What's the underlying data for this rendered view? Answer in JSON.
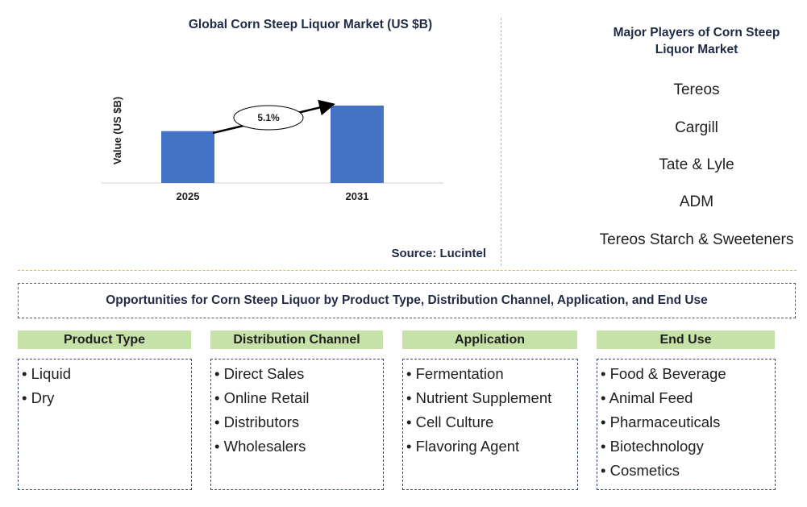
{
  "chart_data": {
    "type": "bar",
    "title": "Global Corn Steep Liquor Market (US $B)",
    "categories": [
      "2025",
      "2031"
    ],
    "values": [
      0.67,
      1.0
    ],
    "ylabel": "Value (US $B)",
    "annotation": "5.1%",
    "colors": {
      "bar": "#4472c4"
    }
  },
  "source": "Source: Lucintel",
  "players": {
    "title": "Major Players of Corn Steep Liquor Market",
    "items": [
      "Tereos",
      "Cargill",
      "Tate & Lyle",
      "ADM",
      "Tereos Starch & Sweeteners"
    ]
  },
  "opportunities": {
    "title": "Opportunities for Corn Steep Liquor by Product Type, Distribution Channel, Application, and End Use"
  },
  "categories": [
    {
      "header": "Product Type",
      "items": [
        "Liquid",
        "Dry"
      ]
    },
    {
      "header": "Distribution Channel",
      "items": [
        "Direct Sales",
        "Online Retail",
        "Distributors",
        "Wholesalers"
      ]
    },
    {
      "header": "Application",
      "items": [
        "Fermentation",
        "Nutrient Supplement",
        "Cell Culture",
        "Flavoring Agent"
      ]
    },
    {
      "header": "End Use",
      "items": [
        "Food & Beverage",
        "Animal Feed",
        "Pharmaceuticals",
        "Biotechnology",
        "Cosmetics"
      ]
    }
  ]
}
